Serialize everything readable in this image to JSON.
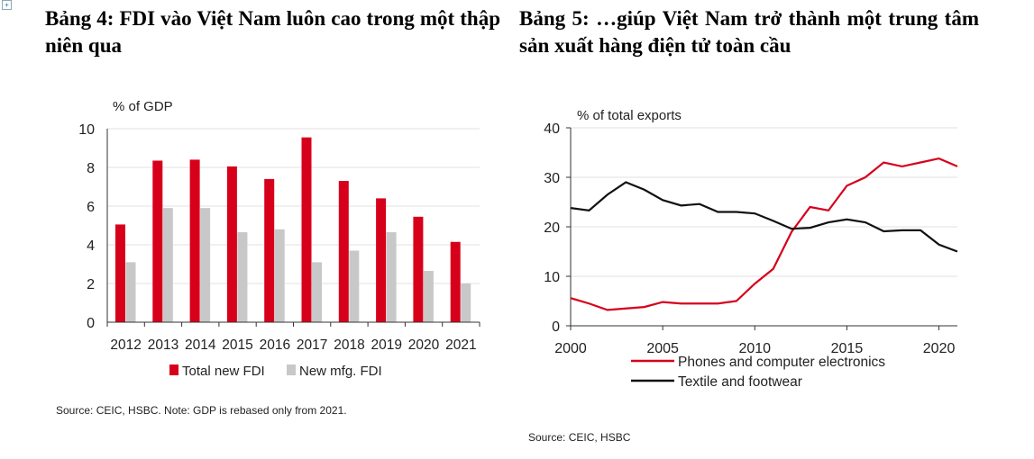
{
  "titles": {
    "left": "Bảng 4: FDI vào Việt Nam luôn cao trong một thập niên qua",
    "right": "Bảng 5: …giúp Việt Nam trở thành một trung tâm sản xuất hàng điện tử toàn cầu"
  },
  "sources": {
    "left": "Source: CEIC, HSBC. Note: GDP is rebased only from 2021.",
    "right": "Source: CEIC, HSBC"
  },
  "colors": {
    "red": "#d7001b",
    "grey": "#c8c8c8",
    "black": "#111111"
  },
  "chart_data": [
    {
      "type": "bar",
      "ylabel": "% of GDP",
      "ylim": [
        0,
        10
      ],
      "yticks": [
        "0",
        "2",
        "4",
        "6",
        "8",
        "10"
      ],
      "categories": [
        "2012",
        "2013",
        "2014",
        "2015",
        "2016",
        "2017",
        "2018",
        "2019",
        "2020",
        "2021"
      ],
      "series": [
        {
          "name": "Total new FDI",
          "values": [
            5.05,
            8.35,
            8.4,
            8.05,
            7.4,
            9.55,
            7.3,
            6.4,
            5.45,
            4.15
          ]
        },
        {
          "name": "New mfg. FDI",
          "values": [
            3.1,
            5.9,
            5.9,
            4.65,
            4.8,
            3.1,
            3.7,
            4.65,
            2.65,
            2.0
          ]
        }
      ],
      "legend": "bottom",
      "grid": true
    },
    {
      "type": "line",
      "ylabel": "% of total exports",
      "ylim": [
        0,
        40
      ],
      "yticks": [
        "0",
        "10",
        "20",
        "30",
        "40"
      ],
      "xticks": [
        "2000",
        "2005",
        "2010",
        "2015",
        "2020"
      ],
      "xlim": [
        2000,
        2021
      ],
      "x": [
        2000,
        2001,
        2002,
        2003,
        2004,
        2005,
        2006,
        2007,
        2008,
        2009,
        2010,
        2011,
        2012,
        2013,
        2014,
        2015,
        2016,
        2017,
        2018,
        2019,
        2020,
        2021
      ],
      "series": [
        {
          "name": "Phones and computer electronics",
          "values": [
            5.6,
            4.5,
            3.2,
            3.5,
            3.8,
            4.8,
            4.5,
            4.5,
            4.5,
            5.0,
            8.5,
            11.5,
            19,
            24,
            23.3,
            28.3,
            30,
            33,
            32.2,
            33,
            33.8,
            32.2
          ]
        },
        {
          "name": "Textile and footwear",
          "values": [
            23.8,
            23.3,
            26.5,
            29,
            27.5,
            25.4,
            24.3,
            24.6,
            23,
            23,
            22.7,
            21.2,
            19.6,
            19.8,
            20.9,
            21.5,
            20.9,
            19.1,
            19.3,
            19.3,
            16.4,
            15
          ]
        }
      ],
      "legend": "bottom",
      "grid": true
    }
  ]
}
